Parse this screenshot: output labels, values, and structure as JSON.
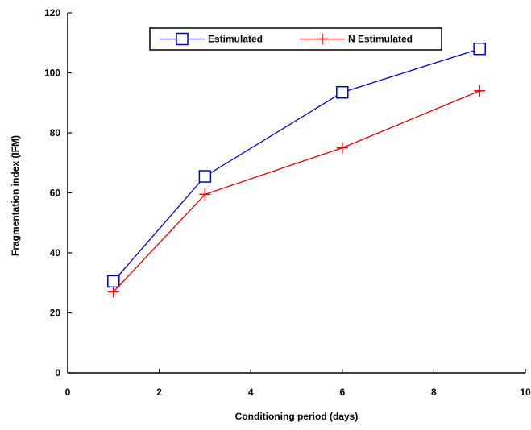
{
  "chart_data": {
    "type": "line",
    "title": "",
    "xlabel": "Conditioning period (days)",
    "ylabel": "Fragmentation index (IFM)",
    "xlim": [
      0,
      10
    ],
    "ylim": [
      0,
      120
    ],
    "x_ticks": [
      0,
      2,
      4,
      6,
      8,
      10
    ],
    "y_ticks": [
      0,
      20,
      40,
      60,
      80,
      100,
      120
    ],
    "grid": false,
    "legend_position": "top",
    "series": [
      {
        "name": "Estimulated",
        "color": "#0000cc",
        "marker": "square",
        "x": [
          1,
          3,
          6,
          9
        ],
        "y": [
          30.5,
          65.5,
          93.5,
          108
        ]
      },
      {
        "name": "N Estimulated",
        "color": "#dd0000",
        "marker": "plus",
        "x": [
          1,
          3,
          6,
          9
        ],
        "y": [
          27,
          59.5,
          75,
          94
        ]
      }
    ]
  }
}
